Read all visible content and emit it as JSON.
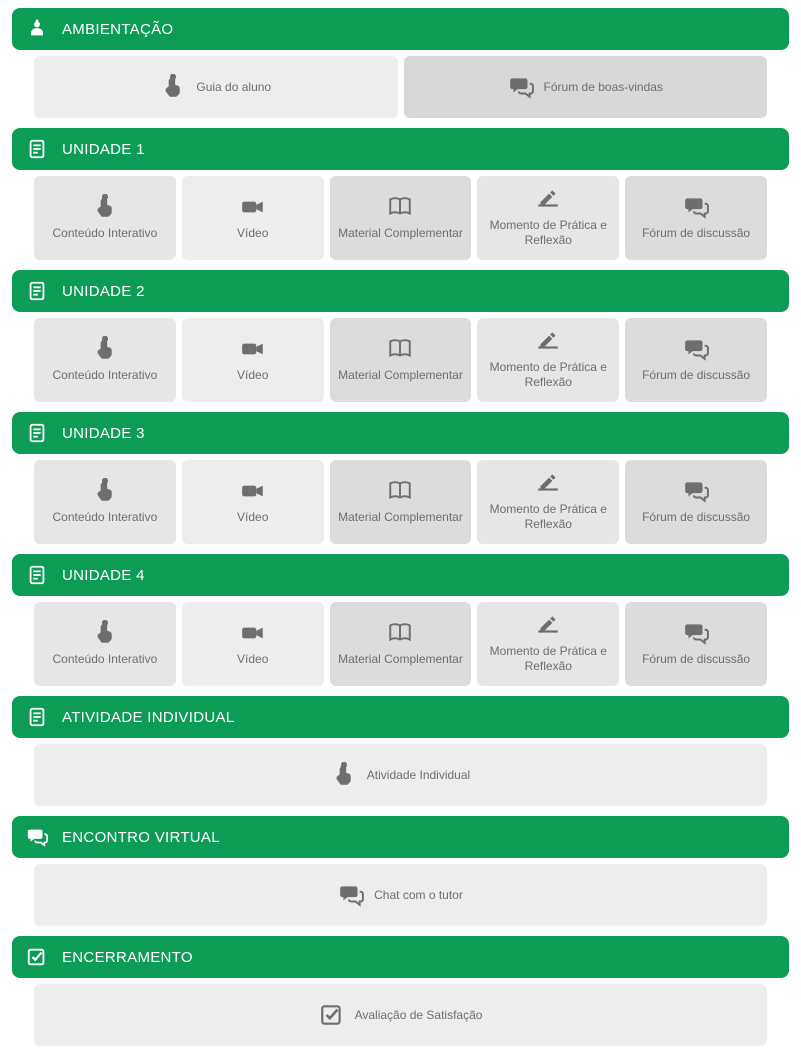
{
  "colors": {
    "header_bg": "#0d9c55",
    "header_text": "#ffffff",
    "tile_icon": "#6e6e6e",
    "tile_text": "#6e6e6e",
    "tile_bg_light": "#ededed",
    "tile_bg_light2": "#e6e6e6",
    "tile_bg_mid": "#dcdcdc",
    "tile_bg_mid2": "#d8d8d8",
    "page_bg": "#ffffff"
  },
  "sections": [
    {
      "id": "ambientacao",
      "icon": "user",
      "title": "AMBIENTAÇÃO",
      "layout": "two",
      "tiles": [
        {
          "icon": "touch",
          "label": "Guia do aluno",
          "bg": "light"
        },
        {
          "icon": "comments",
          "label": "Fórum de boas-vindas",
          "bg": "mid2"
        }
      ]
    },
    {
      "id": "unidade1",
      "icon": "document",
      "title": "UNIDADE 1",
      "layout": "five",
      "tiles": [
        {
          "icon": "touch",
          "label": "Conteúdo Interativo",
          "bg": "light2"
        },
        {
          "icon": "video",
          "label": "Vídeo",
          "bg": "light"
        },
        {
          "icon": "book",
          "label": "Material Complementar",
          "bg": "mid"
        },
        {
          "icon": "write",
          "label": "Momento de Prática e Reflexão",
          "bg": "light2"
        },
        {
          "icon": "comments",
          "label": "Fórum de discussão",
          "bg": "mid"
        }
      ]
    },
    {
      "id": "unidade2",
      "icon": "document",
      "title": "UNIDADE 2",
      "layout": "five",
      "tiles": [
        {
          "icon": "touch",
          "label": "Conteúdo Interativo",
          "bg": "light2"
        },
        {
          "icon": "video",
          "label": "Vídeo",
          "bg": "light"
        },
        {
          "icon": "book",
          "label": "Material Complementar",
          "bg": "mid"
        },
        {
          "icon": "write",
          "label": "Momento de Prática e Reflexão",
          "bg": "light2"
        },
        {
          "icon": "comments",
          "label": "Fórum de discussão",
          "bg": "mid"
        }
      ]
    },
    {
      "id": "unidade3",
      "icon": "document",
      "title": "UNIDADE 3",
      "layout": "five",
      "tiles": [
        {
          "icon": "touch",
          "label": "Conteúdo Interativo",
          "bg": "light2"
        },
        {
          "icon": "video",
          "label": "Vídeo",
          "bg": "light"
        },
        {
          "icon": "book",
          "label": "Material Complementar",
          "bg": "mid"
        },
        {
          "icon": "write",
          "label": "Momento de Prática e Reflexão",
          "bg": "light2"
        },
        {
          "icon": "comments",
          "label": "Fórum de discussão",
          "bg": "mid"
        }
      ]
    },
    {
      "id": "unidade4",
      "icon": "document",
      "title": "UNIDADE 4",
      "layout": "five",
      "tiles": [
        {
          "icon": "touch",
          "label": "Conteúdo Interativo",
          "bg": "light2"
        },
        {
          "icon": "video",
          "label": "Vídeo",
          "bg": "light"
        },
        {
          "icon": "book",
          "label": "Material Complementar",
          "bg": "mid"
        },
        {
          "icon": "write",
          "label": "Momento de Prática e Reflexão",
          "bg": "light2"
        },
        {
          "icon": "comments",
          "label": "Fórum de discussão",
          "bg": "mid"
        }
      ]
    },
    {
      "id": "atividade-individual",
      "icon": "document",
      "title": "ATIVIDADE INDIVIDUAL",
      "layout": "one",
      "tiles": [
        {
          "icon": "touch",
          "label": "Atividade Individual",
          "bg": "light"
        }
      ]
    },
    {
      "id": "encontro-virtual",
      "icon": "comments",
      "title": "ENCONTRO VIRTUAL",
      "layout": "one",
      "tiles": [
        {
          "icon": "comments",
          "label": "Chat com o tutor",
          "bg": "light"
        }
      ]
    },
    {
      "id": "encerramento",
      "icon": "checkbox",
      "title": "ENCERRAMENTO",
      "layout": "one",
      "tiles": [
        {
          "icon": "checkbox",
          "label": "Avaliação de Satisfação",
          "bg": "light"
        }
      ]
    }
  ]
}
